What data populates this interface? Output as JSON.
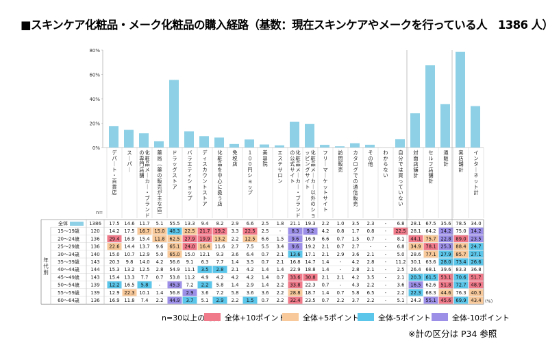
{
  "title": "■スキンケア化粧品・メーク化粧品の購入経路（基数：現在スキンケアやメークを行っている人　1386 人）",
  "note": "※計の区分は P34 参照",
  "colors": {
    "bar": "#8ED1E6",
    "plus10": "#F07A8A",
    "plus5": "#F8C99A",
    "minus5": "#5BC6EA",
    "minus10": "#9C8FE8",
    "axis": "#999999"
  },
  "legend": {
    "lead": "n=30以上の場合",
    "items": [
      {
        "key": "plus10",
        "label": "全体+10ポイント"
      },
      {
        "key": "plus5",
        "label": "全体+5ポイント"
      },
      {
        "key": "minus5",
        "label": "全体-5ポイント"
      },
      {
        "key": "minus10",
        "label": "全体-10ポイント"
      }
    ]
  },
  "chart_data": {
    "type": "bar",
    "ylim": [
      0,
      80
    ],
    "yticks": [
      "0%",
      "20%",
      "40%",
      "60%",
      "80%"
    ],
    "n_label": "n=",
    "total_label": "全体",
    "age_group_label": "年代別",
    "unit_label": "(%)",
    "categories": [
      "デパート・百貨店",
      "スーパー",
      "化粧品メーカー・ブランドの専門店舗",
      "薬局（薬の販売が主な店）",
      "ドラッグストア",
      "バラエティショップ",
      "ディスカウントストア",
      "化粧品を中心に扱う店",
      "免税店",
      "１００円ショップ",
      "美容院",
      "エステサロン",
      "化粧品メーカー・ブランドの公式サイト",
      "化粧品メーカー以外のショッピングサイト",
      "フリーマーケットサイト",
      "訪問販売",
      "カタログでの通信販売",
      "その他",
      "わからない",
      "自分では買っていない",
      "対面店舗計",
      "セルフ店舗計",
      "通販計",
      "実店舗計",
      "インターネット計"
    ],
    "total": {
      "n": "1386",
      "values": [
        "17.5",
        "14.6",
        "11.7",
        "5.1",
        "55.5",
        "13.3",
        "9.4",
        "8.2",
        "2.9",
        "6.6",
        "2.5",
        "1.8",
        "21.1",
        "19.3",
        "2.2",
        "1.0",
        "3.5",
        "2.3",
        "-",
        "6.8",
        "28.1",
        "67.5",
        "35.6",
        "78.5",
        "34.0"
      ]
    },
    "rows": [
      {
        "label": "15～19歳",
        "n": "120",
        "values": [
          "14.2",
          "17.5",
          "16.7",
          "15.0",
          "48.3",
          "22.5",
          "21.7",
          "19.2",
          "3.3",
          "22.5",
          "2.5",
          "-",
          "8.3",
          "9.2",
          "4.2",
          "0.8",
          "1.7",
          "0.8",
          "-",
          "22.5",
          "28.1",
          "64.2",
          "14.2",
          "75.0",
          "14.2"
        ],
        "hl": [
          "",
          "",
          "plus5",
          "plus5",
          "minus5",
          "plus5",
          "plus10",
          "plus10",
          "",
          "plus10",
          "",
          "",
          "minus10",
          "minus10",
          "",
          "",
          "",
          "",
          "",
          "plus10",
          "",
          "",
          "minus10",
          "",
          "minus10"
        ]
      },
      {
        "label": "20～24歳",
        "n": "136",
        "values": [
          "29.4",
          "16.9",
          "15.4",
          "11.8",
          "62.5",
          "27.9",
          "19.9",
          "13.2",
          "2.2",
          "12.5",
          "6.6",
          "1.5",
          "9.6",
          "16.9",
          "6.6",
          "0.7",
          "1.5",
          "0.7",
          "-",
          "8.1",
          "44.1",
          "75.7",
          "22.8",
          "89.0",
          "23.5"
        ],
        "hl": [
          "plus10",
          "",
          "",
          "plus5",
          "plus5",
          "plus10",
          "plus10",
          "plus5",
          "",
          "plus5",
          "",
          "",
          "minus10",
          "",
          "",
          "",
          "",
          "",
          "",
          "",
          "plus10",
          "plus5",
          "minus10",
          "plus10",
          "minus10"
        ]
      },
      {
        "label": "25～29歳",
        "n": "136",
        "values": [
          "22.6",
          "14.4",
          "13.7",
          "9.6",
          "65.1",
          "24.0",
          "16.4",
          "11.6",
          "2.7",
          "7.5",
          "5.5",
          "3.4",
          "9.6",
          "19.2",
          "2.1",
          "0.7",
          "2.7",
          "-",
          "-",
          "6.8",
          "34.9",
          "78.1",
          "25.3",
          "88.4",
          "24.7"
        ],
        "hl": [
          "plus5",
          "",
          "",
          "",
          "plus5",
          "plus10",
          "plus5",
          "",
          "",
          "",
          "",
          "",
          "minus10",
          "",
          "",
          "",
          "",
          "",
          "",
          "",
          "plus5",
          "plus10",
          "minus10",
          "plus5",
          "minus5"
        ]
      },
      {
        "label": "30～34歳",
        "n": "140",
        "values": [
          "15.0",
          "10.7",
          "12.9",
          "5.0",
          "65.0",
          "15.0",
          "12.1",
          "9.3",
          "3.6",
          "6.4",
          "0.7",
          "2.1",
          "13.6",
          "17.1",
          "2.1",
          "2.9",
          "3.6",
          "2.1",
          "-",
          "5.0",
          "28.6",
          "77.1",
          "27.9",
          "85.7",
          "27.1"
        ],
        "hl": [
          "",
          "",
          "",
          "",
          "plus5",
          "",
          "",
          "",
          "",
          "",
          "",
          "",
          "minus5",
          "",
          "",
          "",
          "",
          "",
          "",
          "",
          "",
          "plus5",
          "minus5",
          "plus5",
          "minus5"
        ]
      },
      {
        "label": "35～39歳",
        "n": "143",
        "values": [
          "20.3",
          "9.8",
          "14.0",
          "4.2",
          "56.6",
          "9.1",
          "6.3",
          "7.7",
          "1.4",
          "3.5",
          "0.7",
          "2.1",
          "16.8",
          "14.7",
          "1.4",
          "-",
          "4.2",
          "2.8",
          "-",
          "11.2",
          "30.1",
          "63.6",
          "28.0",
          "73.4",
          "26.6"
        ],
        "hl": [
          "",
          "",
          "",
          "",
          "",
          "",
          "",
          "",
          "",
          "",
          "",
          "",
          "",
          "",
          "",
          "",
          "",
          "",
          "",
          "",
          "",
          "",
          "minus5",
          "minus5",
          "minus5"
        ]
      },
      {
        "label": "40～44歳",
        "n": "144",
        "values": [
          "15.3",
          "13.2",
          "12.5",
          "2.8",
          "54.9",
          "11.1",
          "3.5",
          "2.8",
          "2.1",
          "4.2",
          "1.4",
          "1.4",
          "22.9",
          "18.8",
          "1.4",
          "-",
          "2.8",
          "2.1",
          "-",
          "2.5",
          "26.4",
          "68.1",
          "39.6",
          "83.3",
          "36.8"
        ],
        "hl": [
          "",
          "",
          "",
          "",
          "",
          "",
          "minus5",
          "minus5",
          "",
          "",
          "",
          "",
          "",
          "",
          "",
          "",
          "",
          "",
          "",
          "",
          "",
          "",
          "",
          "",
          ""
        ]
      },
      {
        "label": "45～49歳",
        "n": "143",
        "values": [
          "15.4",
          "13.3",
          "7.7",
          "0.7",
          "53.8",
          "11.2",
          "4.9",
          "4.2",
          "4.2",
          "4.2",
          "1.4",
          "0.7",
          "33.6",
          "30.8",
          "2.1",
          "2.1",
          "4.2",
          "3.5",
          "-",
          "2.1",
          "20.3",
          "61.5",
          "53.1",
          "70.6",
          "51.7"
        ],
        "hl": [
          "",
          "",
          "",
          "",
          "",
          "",
          "",
          "",
          "",
          "",
          "",
          "",
          "plus10",
          "plus10",
          "",
          "",
          "",
          "",
          "",
          "",
          "minus5",
          "minus5",
          "plus10",
          "minus5",
          "plus10"
        ]
      },
      {
        "label": "50～54歳",
        "n": "139",
        "values": [
          "12.2",
          "16.5",
          "5.8",
          "-",
          "45.3",
          "7.2",
          "2.2",
          "5.8",
          "1.4",
          "2.9",
          "1.4",
          "2.2",
          "33.8",
          "22.3",
          "0.7",
          "-",
          "4.3",
          "2.2",
          "-",
          "3.6",
          "16.5",
          "62.6",
          "51.8",
          "72.7",
          "48.9"
        ],
        "hl": [
          "minus5",
          "",
          "minus5",
          "",
          "minus10",
          "",
          "minus5",
          "",
          "",
          "",
          "",
          "",
          "plus10",
          "",
          "",
          "",
          "",
          "",
          "",
          "",
          "minus10",
          "",
          "plus10",
          "minus5",
          "plus10"
        ]
      },
      {
        "label": "55～59歳",
        "n": "139",
        "values": [
          "12.9",
          "22.3",
          "10.1",
          "1.4",
          "56.8",
          "2.9",
          "3.6",
          "7.2",
          "5.8",
          "3.6",
          "3.6",
          "2.2",
          "28.8",
          "18.7",
          "1.4",
          "0.7",
          "5.8",
          "6.5",
          "-",
          "2.2",
          "22.3",
          "68.3",
          "44.6",
          "76.3",
          "40.3"
        ],
        "hl": [
          "",
          "plus5",
          "",
          "",
          "",
          "minus10",
          "",
          "",
          "",
          "",
          "",
          "",
          "plus5",
          "",
          "",
          "",
          "",
          "",
          "",
          "",
          "minus5",
          "",
          "plus5",
          "",
          "plus5"
        ]
      },
      {
        "label": "60～64歳",
        "n": "136",
        "values": [
          "16.9",
          "11.8",
          "7.4",
          "2.2",
          "44.9",
          "3.7",
          "5.1",
          "2.9",
          "2.2",
          "1.5",
          "0.7",
          "2.2",
          "32.4",
          "23.5",
          "0.7",
          "2.2",
          "3.7",
          "2.2",
          "-",
          "5.1",
          "24.3",
          "55.1",
          "45.6",
          "69.9",
          "43.4"
        ],
        "hl": [
          "",
          "",
          "",
          "",
          "minus10",
          "minus5",
          "",
          "minus5",
          "",
          "minus5",
          "",
          "",
          "plus10",
          "",
          "",
          "",
          "",
          "",
          "",
          "",
          "",
          "minus10",
          "plus10",
          "minus5",
          "plus5"
        ]
      }
    ]
  }
}
